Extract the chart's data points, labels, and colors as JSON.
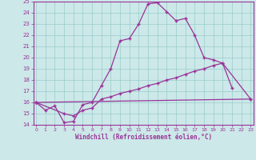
{
  "xlabel": "Windchill (Refroidissement éolien,°C)",
  "line1_x": [
    0,
    1,
    2,
    3,
    4,
    5,
    6,
    7,
    8,
    9,
    10,
    11,
    12,
    13,
    14,
    15,
    16,
    17,
    18,
    19,
    20,
    21
  ],
  "line1_y": [
    16.0,
    15.3,
    15.7,
    14.2,
    14.3,
    15.8,
    16.0,
    17.5,
    19.0,
    21.5,
    21.7,
    23.0,
    24.8,
    24.9,
    24.1,
    23.3,
    23.5,
    22.0,
    20.0,
    19.8,
    19.5,
    17.3
  ],
  "line2_x": [
    0,
    3,
    4,
    5,
    6,
    7,
    8,
    9,
    10,
    11,
    12,
    13,
    14,
    15,
    16,
    17,
    18,
    19,
    20,
    23
  ],
  "line2_y": [
    16.0,
    15.0,
    14.8,
    15.3,
    15.5,
    16.3,
    16.5,
    16.8,
    17.0,
    17.2,
    17.5,
    17.7,
    18.0,
    18.2,
    18.5,
    18.8,
    19.0,
    19.3,
    19.5,
    16.3
  ],
  "line3_x": [
    0,
    23
  ],
  "line3_y": [
    16.0,
    16.3
  ],
  "ylim": [
    14,
    25
  ],
  "xlim": [
    0,
    23
  ],
  "yticks": [
    14,
    15,
    16,
    17,
    18,
    19,
    20,
    21,
    22,
    23,
    24,
    25
  ],
  "xticks": [
    0,
    1,
    2,
    3,
    4,
    5,
    6,
    7,
    8,
    9,
    10,
    11,
    12,
    13,
    14,
    15,
    16,
    17,
    18,
    19,
    20,
    21,
    22,
    23
  ],
  "bg_color": "#cce8e8",
  "line_color": "#993399",
  "grid_color": "#99cccc",
  "spine_color": "#993399",
  "tick_color": "#993399",
  "xlabel_color": "#993399"
}
